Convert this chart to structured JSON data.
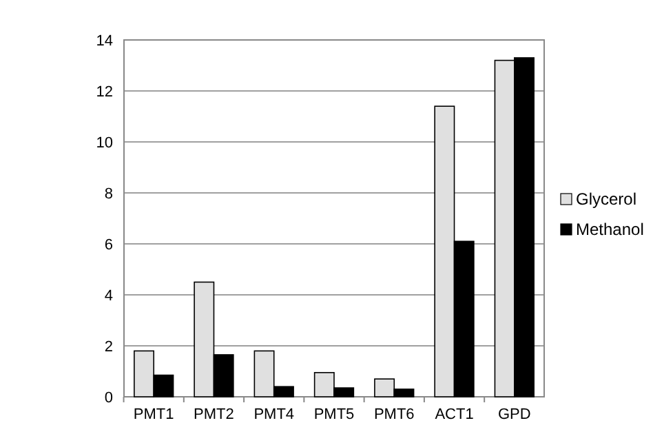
{
  "chart_data": {
    "type": "bar",
    "categories": [
      "PMT1",
      "PMT2",
      "PMT4",
      "PMT5",
      "PMT6",
      "ACT1",
      "GPD"
    ],
    "series": [
      {
        "name": "Glycerol",
        "color": "#e0e0e0",
        "values": [
          1.8,
          4.5,
          1.8,
          0.95,
          0.7,
          11.4,
          13.2
        ]
      },
      {
        "name": "Methanol",
        "color": "#000000",
        "values": [
          0.85,
          1.65,
          0.4,
          0.35,
          0.3,
          6.1,
          13.3
        ]
      }
    ],
    "ylim": [
      0,
      14
    ],
    "yticks": [
      0,
      2,
      4,
      6,
      8,
      10,
      12,
      14
    ],
    "grid": "y",
    "legend": "right"
  }
}
